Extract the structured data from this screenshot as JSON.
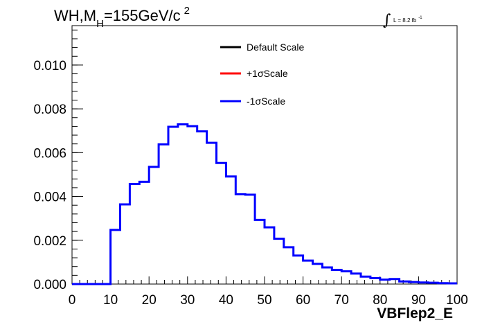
{
  "chart_data": {
    "type": "histogram",
    "title": {
      "main": "WH,M",
      "subscript": "H",
      "tail": "=155GeV/c",
      "superscript": "2"
    },
    "lumi": {
      "integral": "∫",
      "text": "L = 8.2 fb",
      "superscript": "-1"
    },
    "xlabel": "VBFlep2_E",
    "ylabel": "",
    "xlim": [
      0,
      100
    ],
    "ylim": [
      0,
      0.0118
    ],
    "xticks": [
      "0",
      "10",
      "20",
      "30",
      "40",
      "50",
      "60",
      "70",
      "80",
      "90",
      "100"
    ],
    "yticks": [
      "0.000",
      "0.002",
      "0.004",
      "0.006",
      "0.008",
      "0.010"
    ],
    "bin_width": 2.5,
    "bin_edges_start": 0,
    "legend": [
      {
        "name": "Default Scale",
        "color": "#000000"
      },
      {
        "name": "+1σScale",
        "color": "#ff0000"
      },
      {
        "name": "-1σScale",
        "color": "#0000ff"
      }
    ],
    "series": [
      {
        "name": "-1σScale",
        "color": "#0000ff",
        "values": [
          0,
          0,
          0,
          0,
          0.00247,
          0.00364,
          0.00457,
          0.00467,
          0.00535,
          0.00638,
          0.00718,
          0.00729,
          0.00721,
          0.00697,
          0.00645,
          0.00553,
          0.00491,
          0.0041,
          0.00408,
          0.00293,
          0.00259,
          0.00207,
          0.00168,
          0.0013,
          0.00107,
          0.00092,
          0.00076,
          0.00065,
          0.00058,
          0.00048,
          0.00034,
          0.00027,
          0.0002,
          0.00023,
          0.00012,
          9e-05,
          7e-05,
          6e-05,
          4e-05,
          3e-05
        ]
      }
    ]
  }
}
